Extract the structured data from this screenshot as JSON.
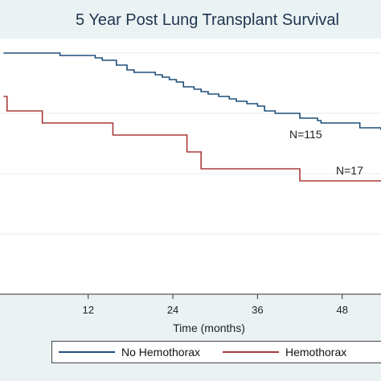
{
  "chart_data": {
    "type": "line",
    "title": "5 Year Post Lung Transplant Survival",
    "xlabel": "Time (months)",
    "ylabel": "",
    "xlim": [
      -0.5,
      53.5
    ],
    "ylim": [
      0,
      1
    ],
    "xticks": [
      12,
      24,
      36,
      48
    ],
    "yticks": [
      0.25,
      0.5,
      0.75,
      1.0
    ],
    "grid": true,
    "legend_position": "bottom",
    "series": [
      {
        "name": "No Hemothorax",
        "color": "#1f4e79",
        "annotation": "N=115",
        "points": [
          [
            0,
            1.0
          ],
          [
            5,
            1.0
          ],
          [
            8,
            0.99
          ],
          [
            13,
            0.98
          ],
          [
            14,
            0.97
          ],
          [
            16,
            0.95
          ],
          [
            17.5,
            0.93
          ],
          [
            18.5,
            0.92
          ],
          [
            21.5,
            0.91
          ],
          [
            22.5,
            0.9
          ],
          [
            23.5,
            0.89
          ],
          [
            24.5,
            0.88
          ],
          [
            25.5,
            0.86
          ],
          [
            27,
            0.85
          ],
          [
            28,
            0.84
          ],
          [
            29,
            0.83
          ],
          [
            30.5,
            0.82
          ],
          [
            32,
            0.81
          ],
          [
            33,
            0.8
          ],
          [
            34.5,
            0.79
          ],
          [
            36,
            0.78
          ],
          [
            37,
            0.76
          ],
          [
            38.5,
            0.75
          ],
          [
            42,
            0.73
          ],
          [
            44.5,
            0.72
          ],
          [
            45,
            0.71
          ],
          [
            50.5,
            0.69
          ],
          [
            53.5,
            0.68
          ]
        ]
      },
      {
        "name": "Hemothorax",
        "color": "#a83a3a",
        "annotation": "N=17",
        "points": [
          [
            0,
            0.82
          ],
          [
            0.5,
            0.76
          ],
          [
            5.5,
            0.76
          ],
          [
            5.5,
            0.71
          ],
          [
            15.5,
            0.71
          ],
          [
            15.5,
            0.66
          ],
          [
            26,
            0.66
          ],
          [
            26,
            0.59
          ],
          [
            28,
            0.59
          ],
          [
            28,
            0.52
          ],
          [
            42,
            0.52
          ],
          [
            42,
            0.47
          ],
          [
            53.5,
            0.47
          ]
        ]
      }
    ]
  },
  "legend": {
    "no_hemothorax": "No Hemothorax",
    "hemothorax": "Hemothorax"
  }
}
